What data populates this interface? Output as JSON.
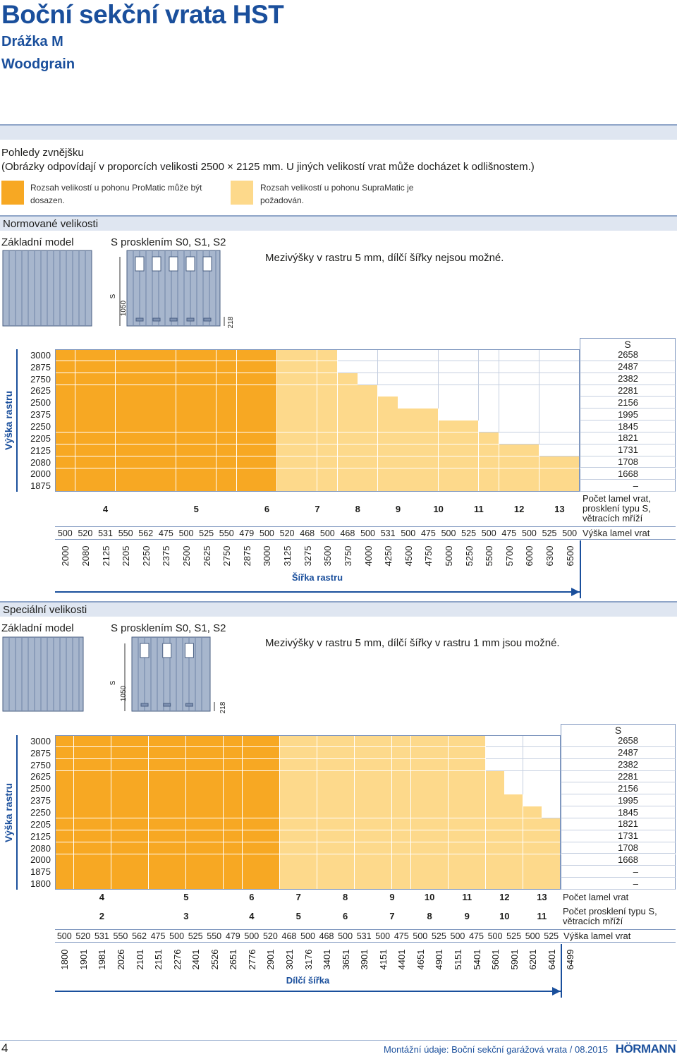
{
  "header": {
    "title": "Boční sekční vrata HST",
    "subtitle": "Drážka M",
    "variant": "Woodgrain"
  },
  "views": {
    "heading": "Pohledy zvnějšku",
    "note": "(Obrázky odpovídají v proporcích velikosti 2500 × 2125 mm. U jiných velikostí vrat může docházet k odlišnostem.)",
    "legend": [
      {
        "text": "Rozsah velikostí u pohonu ProMatic může být dosazen.",
        "color": "#f7a823"
      },
      {
        "text": "Rozsah velikostí u pohonu SupraMatic je požadován.",
        "color": "#fdd98b"
      }
    ]
  },
  "sections": [
    {
      "heading": "Normované velikosti",
      "basic_model": "Základní model",
      "glazed_model": "S prosklením S0, S1, S2",
      "note": "Mezivýšky v rastru 5 mm, dílčí šířky nejsou možné.",
      "dims": {
        "s": "S",
        "h1050": "1050",
        "h218": "218"
      },
      "grid": {
        "height_axis_label": "Výška rastru",
        "width_axis_label": "Šířka rastru",
        "s_header": "S",
        "lamel_label": "Počet lamel vrat, prosklení typu S, větracích mříží",
        "lamel_height_label": "Výška lamel vrat",
        "widths": [
          "2000",
          "2080",
          "2125",
          "2205",
          "2250",
          "2375",
          "2500",
          "2625",
          "2750",
          "2875",
          "3000",
          "3125",
          "3275",
          "3500",
          "3750",
          "4000",
          "4250",
          "4500",
          "4750",
          "5000",
          "5250",
          "5500",
          "5700",
          "6000",
          "6300",
          "6500"
        ],
        "lamel_heights": [
          "500",
          "520",
          "531",
          "550",
          "562",
          "475",
          "500",
          "525",
          "550",
          "479",
          "500",
          "520",
          "468",
          "500",
          "468",
          "500",
          "531",
          "500",
          "475",
          "500",
          "525",
          "500",
          "475",
          "500",
          "525",
          "500"
        ],
        "lamel_groups": [
          {
            "count": "4",
            "span": 5
          },
          {
            "count": "5",
            "span": 4
          },
          {
            "count": "6",
            "span": 3
          },
          {
            "count": "7",
            "span": 2
          },
          {
            "count": "8",
            "span": 2
          },
          {
            "count": "9",
            "span": 2
          },
          {
            "count": "10",
            "span": 2
          },
          {
            "count": "11",
            "span": 2
          },
          {
            "count": "12",
            "span": 2
          },
          {
            "count": "13",
            "span": 2
          }
        ],
        "rows": [
          {
            "height": "3000",
            "s": "2658",
            "promatic": 11,
            "supramatic": 14
          },
          {
            "height": "2875",
            "s": "2487",
            "promatic": 11,
            "supramatic": 14
          },
          {
            "height": "2750",
            "s": "2382",
            "promatic": 11,
            "supramatic": 15
          },
          {
            "height": "2625",
            "s": "2281",
            "promatic": 11,
            "supramatic": 16
          },
          {
            "height": "2500",
            "s": "2156",
            "promatic": 11,
            "supramatic": 17
          },
          {
            "height": "2375",
            "s": "1995",
            "promatic": 11,
            "supramatic": 19
          },
          {
            "height": "2250",
            "s": "1845",
            "promatic": 11,
            "supramatic": 21
          },
          {
            "height": "2205",
            "s": "1821",
            "promatic": 11,
            "supramatic": 22
          },
          {
            "height": "2125",
            "s": "1731",
            "promatic": 11,
            "supramatic": 24
          },
          {
            "height": "2080",
            "s": "1708",
            "promatic": 11,
            "supramatic": 26
          },
          {
            "height": "2000",
            "s": "1668",
            "promatic": 11,
            "supramatic": 26
          },
          {
            "height": "1875",
            "s": "–",
            "promatic": 11,
            "supramatic": 26
          }
        ]
      }
    },
    {
      "heading": "Speciální velikosti",
      "basic_model": "Základní model",
      "glazed_model": "S prosklením S0, S1, S2",
      "note": "Mezivýšky v rastru 5 mm, dílčí šířky v rastru 1 mm jsou možné.",
      "dims": {
        "s": "S",
        "h1050": "1050",
        "h218": "218"
      },
      "grid": {
        "height_axis_label": "Výška rastru",
        "width_axis_label": "Dílčí šířka",
        "s_header": "S",
        "lamel_label": "Počet lamel vrat",
        "glazing_label": "Počet prosklení typu S, větracích mříží",
        "lamel_height_label": "Výška lamel vrat",
        "widths": [
          "1800",
          "1901",
          "1981",
          "2026",
          "2101",
          "2151",
          "2276",
          "2401",
          "2526",
          "2651",
          "2776",
          "2901",
          "3021",
          "3176",
          "3401",
          "3651",
          "3901",
          "4151",
          "4401",
          "4651",
          "4901",
          "5151",
          "5401",
          "5601",
          "5901",
          "6201",
          "6401",
          "6499"
        ],
        "lamel_heights": [
          "500",
          "520",
          "531",
          "550",
          "562",
          "475",
          "500",
          "525",
          "550",
          "479",
          "500",
          "520",
          "468",
          "500",
          "468",
          "500",
          "531",
          "500",
          "475",
          "500",
          "525",
          "500",
          "475",
          "500",
          "525",
          "500",
          "525"
        ],
        "lamel_groups": [
          {
            "count": "4",
            "span": 5
          },
          {
            "count": "5",
            "span": 4
          },
          {
            "count": "6",
            "span": 3
          },
          {
            "count": "7",
            "span": 2
          },
          {
            "count": "8",
            "span": 3
          },
          {
            "count": "9",
            "span": 2
          },
          {
            "count": "10",
            "span": 2
          },
          {
            "count": "11",
            "span": 2
          },
          {
            "count": "12",
            "span": 2
          },
          {
            "count": "13",
            "span": 2
          }
        ],
        "glazing_groups": [
          "2",
          "3",
          "4",
          "5",
          "6",
          "7",
          "8",
          "9",
          "10",
          "11"
        ],
        "rows": [
          {
            "height": "3000",
            "s": "2658",
            "promatic": 12,
            "supramatic": 23
          },
          {
            "height": "2875",
            "s": "2487",
            "promatic": 12,
            "supramatic": 23
          },
          {
            "height": "2750",
            "s": "2382",
            "promatic": 12,
            "supramatic": 23
          },
          {
            "height": "2625",
            "s": "2281",
            "promatic": 12,
            "supramatic": 24
          },
          {
            "height": "2500",
            "s": "2156",
            "promatic": 12,
            "supramatic": 24
          },
          {
            "height": "2375",
            "s": "1995",
            "promatic": 12,
            "supramatic": 25
          },
          {
            "height": "2250",
            "s": "1845",
            "promatic": 12,
            "supramatic": 26
          },
          {
            "height": "2205",
            "s": "1821",
            "promatic": 12,
            "supramatic": 27
          },
          {
            "height": "2125",
            "s": "1731",
            "promatic": 12,
            "supramatic": 27
          },
          {
            "height": "2080",
            "s": "1708",
            "promatic": 12,
            "supramatic": 27
          },
          {
            "height": "2000",
            "s": "1668",
            "promatic": 12,
            "supramatic": 27
          },
          {
            "height": "1875",
            "s": "–",
            "promatic": 12,
            "supramatic": 27
          },
          {
            "height": "1800",
            "s": "–",
            "promatic": 12,
            "supramatic": 27
          }
        ]
      }
    }
  ],
  "footer": {
    "page": "4",
    "text": "Montážní údaje: Boční sekční garážová vrata / 08.2015",
    "brand": "HÖRMANN"
  }
}
